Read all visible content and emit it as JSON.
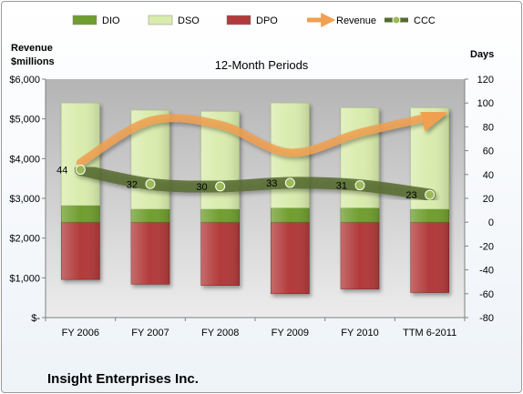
{
  "chart_data": {
    "type": "bar",
    "title": "12-Month Periods",
    "company": "Insight Enterprises Inc.",
    "left_axis_label": [
      "Revenue",
      "$millions"
    ],
    "right_axis_label": "Days",
    "categories": [
      "FY 2006",
      "FY 2007",
      "FY 2008",
      "FY 2009",
      "FY 2010",
      "TTM 6-2011"
    ],
    "left_axis": {
      "min": 0,
      "max": 6000,
      "step": 1000,
      "tick_labels": [
        "$-",
        "$1,000",
        "$2,000",
        "$3,000",
        "$4,000",
        "$5,000",
        "$6,000"
      ]
    },
    "right_axis": {
      "min": -80,
      "max": 120,
      "step": 20,
      "tick_labels": [
        "-80",
        "-60",
        "-40",
        "-20",
        "0",
        "20",
        "40",
        "60",
        "80",
        "100",
        "120"
      ]
    },
    "legend": {
      "position": "top",
      "items": [
        "DIO",
        "DSO",
        "DPO",
        "Revenue",
        "CCC"
      ]
    },
    "series": [
      {
        "name": "DIO",
        "type": "stacked-bar",
        "axis": "right",
        "color": "#6f9e2f",
        "values": [
          14,
          11,
          11,
          12,
          12,
          11
        ]
      },
      {
        "name": "DSO",
        "type": "stacked-bar",
        "axis": "right",
        "color": "#d9ecad",
        "values": [
          86,
          83,
          82,
          88,
          84,
          85
        ]
      },
      {
        "name": "DPO",
        "type": "bar-below-zero",
        "axis": "right",
        "color": "#b23a3a",
        "values": [
          -48,
          -52,
          -53,
          -60,
          -56,
          -59
        ]
      },
      {
        "name": "Revenue",
        "type": "line",
        "axis": "left",
        "color": "#f0a050",
        "values": [
          3900,
          4950,
          4850,
          4150,
          4650,
          5050
        ]
      },
      {
        "name": "CCC",
        "type": "line",
        "axis": "right",
        "color": "#556b2f",
        "values": [
          44,
          32,
          30,
          33,
          31,
          23
        ]
      }
    ],
    "grid": false
  }
}
